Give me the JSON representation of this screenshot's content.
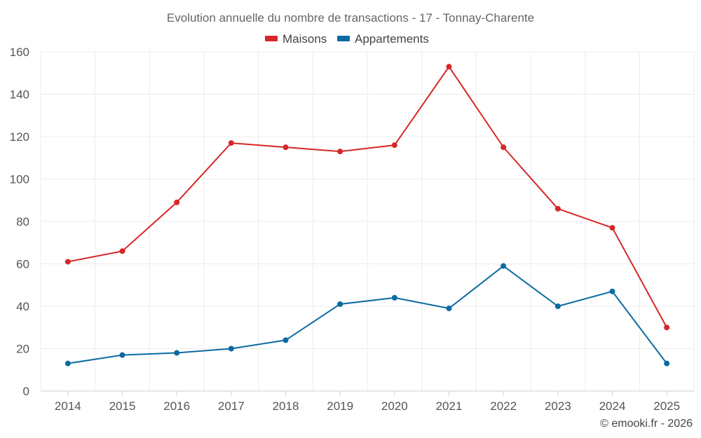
{
  "chart_data": {
    "type": "line",
    "title": "Evolution annuelle du nombre de transactions - 17 - Tonnay-Charente",
    "categories": [
      "2014",
      "2015",
      "2016",
      "2017",
      "2018",
      "2019",
      "2020",
      "2021",
      "2022",
      "2023",
      "2024",
      "2025"
    ],
    "series": [
      {
        "name": "Maisons",
        "color": "#d62728",
        "values": [
          61,
          66,
          89,
          117,
          115,
          113,
          116,
          153,
          115,
          86,
          77,
          30
        ]
      },
      {
        "name": "Appartements",
        "color": "#0b6aa2",
        "values": [
          13,
          17,
          18,
          20,
          24,
          41,
          44,
          39,
          59,
          40,
          47,
          13
        ]
      }
    ],
    "ylim": [
      0,
      160
    ],
    "yticks": [
      0,
      20,
      40,
      60,
      80,
      100,
      120,
      140,
      160
    ],
    "xlabel": "",
    "ylabel": "",
    "grid": true,
    "legend": "top-center"
  },
  "credit": "© emooki.fr - 2026"
}
